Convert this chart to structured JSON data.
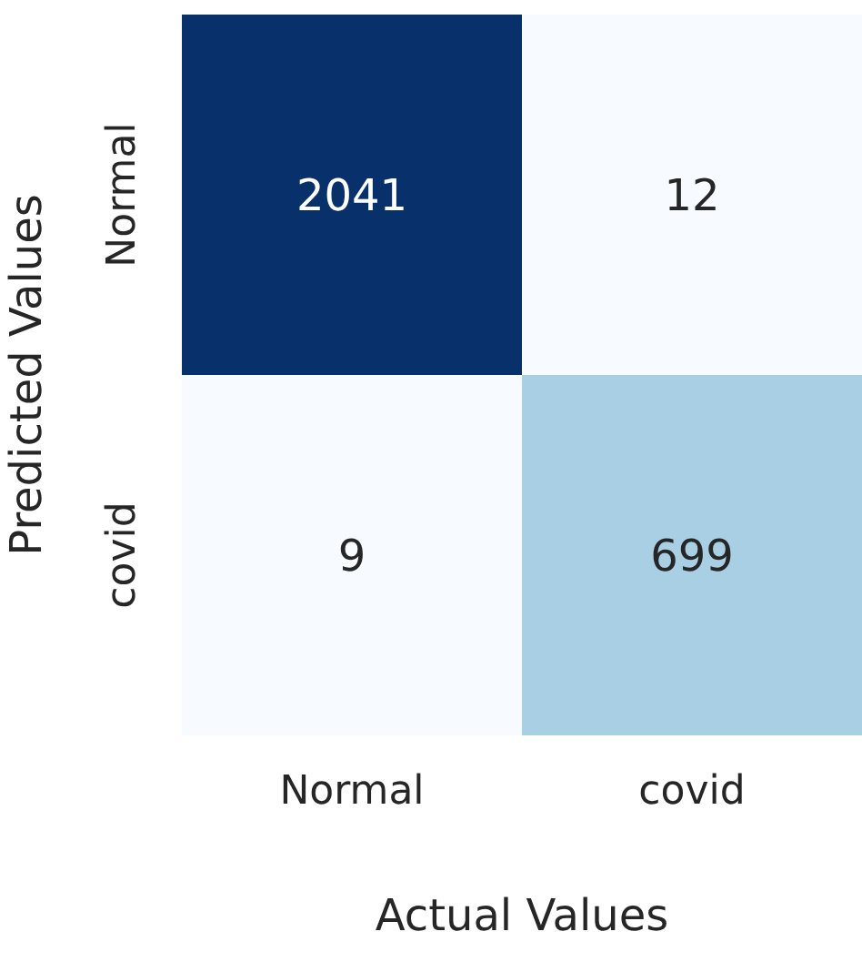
{
  "chart_data": {
    "type": "heatmap",
    "xlabel": "Actual Values",
    "ylabel": "Predicted Values",
    "categories": [
      "Normal",
      "covid"
    ],
    "y_categories": [
      "Normal",
      "covid"
    ],
    "cells": [
      [
        2041,
        12
      ],
      [
        9,
        699
      ]
    ],
    "data_labels": true
  }
}
